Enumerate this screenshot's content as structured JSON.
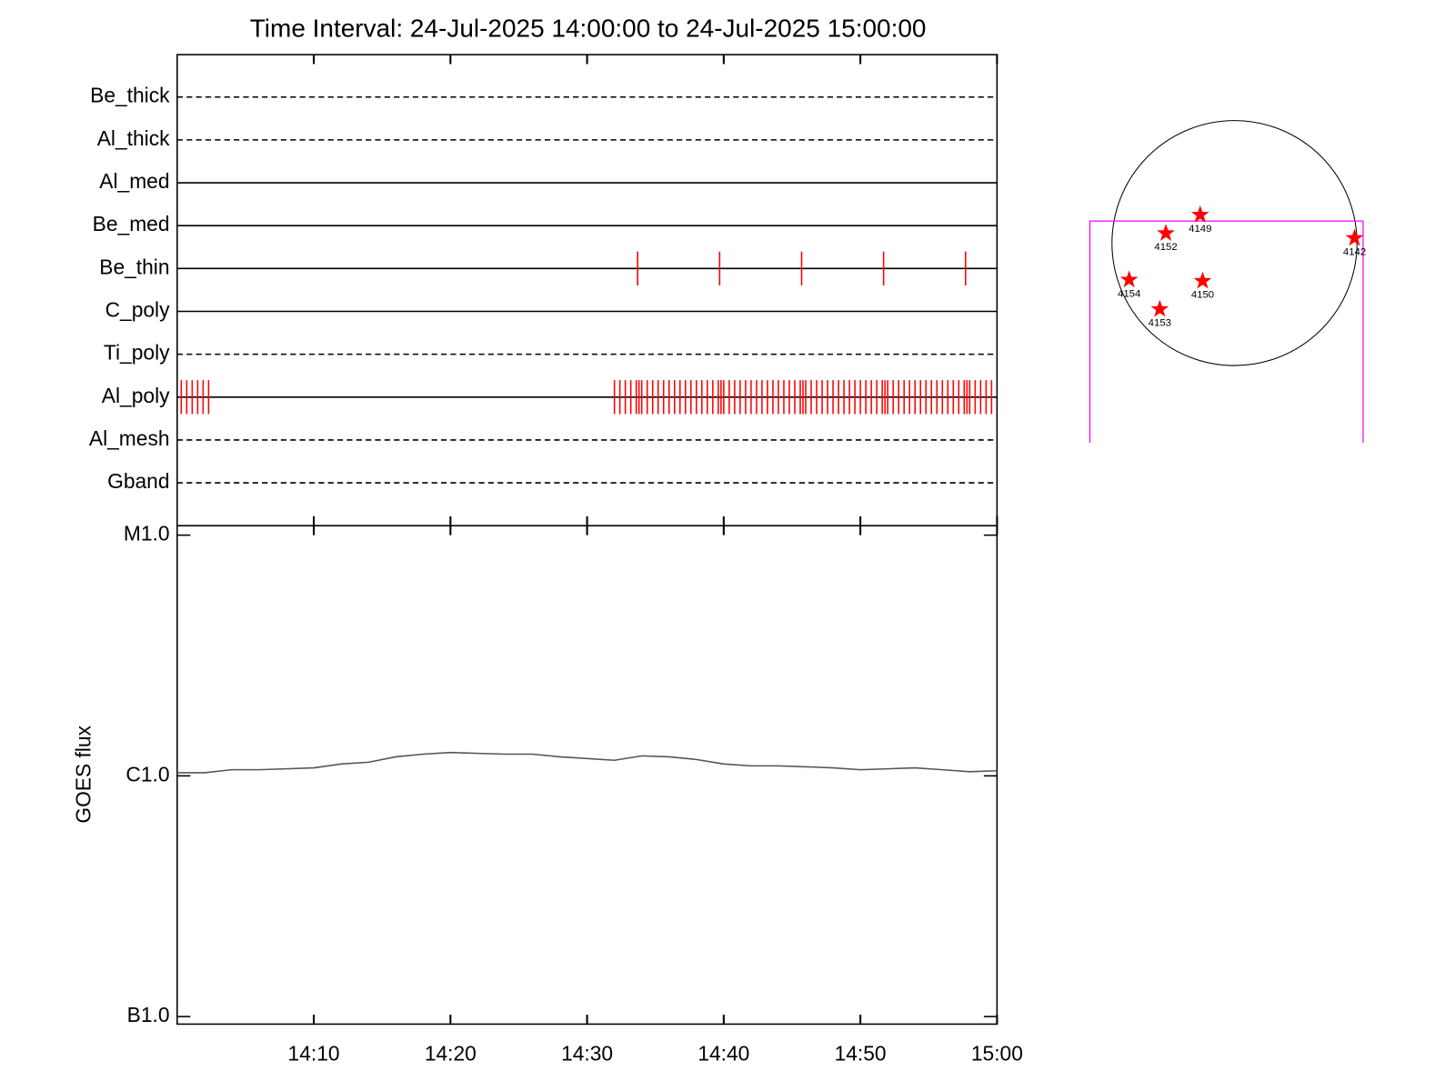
{
  "chart_data": [
    {
      "type": "timeline",
      "title": "Time Interval: 24-Jul-2025 14:00:00 to 24-Jul-2025 15:00:00",
      "categories": [
        "Be_thick",
        "Al_thick",
        "Al_med",
        "Be_med",
        "Be_thin",
        "C_poly",
        "Ti_poly",
        "Al_poly",
        "Al_mesh",
        "Gband"
      ],
      "line_styles": [
        "dashed",
        "dashed",
        "solid",
        "solid",
        "solid",
        "solid",
        "dashed",
        "solid",
        "dashed",
        "dashed"
      ],
      "event_color": "#ff0000",
      "events": [
        [],
        [],
        [],
        [],
        [
          33.7,
          39.7,
          45.7,
          51.7,
          57.7
        ],
        [],
        [],
        [
          0.3,
          0.7,
          1.1,
          1.5,
          1.9,
          2.3,
          32.0,
          32.4,
          32.8,
          33.2,
          33.6,
          33.8,
          34.0,
          34.4,
          34.8,
          35.2,
          35.6,
          36.0,
          36.4,
          36.8,
          37.2,
          37.6,
          38.0,
          38.4,
          38.8,
          39.2,
          39.6,
          39.8,
          40.0,
          40.4,
          40.8,
          41.2,
          41.6,
          42.0,
          42.4,
          42.8,
          43.2,
          43.6,
          44.0,
          44.4,
          44.8,
          45.2,
          45.6,
          45.8,
          46.0,
          46.4,
          46.8,
          47.2,
          47.6,
          48.0,
          48.4,
          48.8,
          49.2,
          49.6,
          50.0,
          50.4,
          50.8,
          51.2,
          51.6,
          51.8,
          52.0,
          52.4,
          52.8,
          53.2,
          53.6,
          54.0,
          54.4,
          54.8,
          55.2,
          55.6,
          56.0,
          56.4,
          56.8,
          57.2,
          57.6,
          57.8,
          58.0,
          58.4,
          58.8,
          59.2,
          59.6
        ],
        [],
        []
      ],
      "xlim": [
        0,
        60
      ],
      "xticks": [
        10,
        20,
        30,
        40,
        50,
        60
      ]
    },
    {
      "type": "line",
      "ylabel": "GOES flux",
      "log": true,
      "x": [
        0,
        2,
        4,
        6,
        8,
        10,
        12,
        14,
        16,
        18,
        20,
        22,
        24,
        26,
        28,
        30,
        32,
        34,
        36,
        38,
        40,
        42,
        44,
        46,
        48,
        50,
        52,
        54,
        56,
        58,
        60
      ],
      "series": [
        {
          "color": "#555555",
          "values": [
            1.03e-06,
            1.03e-06,
            1.06e-06,
            1.06e-06,
            1.07e-06,
            1.08e-06,
            1.12e-06,
            1.14e-06,
            1.2e-06,
            1.23e-06,
            1.25e-06,
            1.24e-06,
            1.23e-06,
            1.23e-06,
            1.2e-06,
            1.18e-06,
            1.16e-06,
            1.21e-06,
            1.2e-06,
            1.17e-06,
            1.12e-06,
            1.1e-06,
            1.1e-06,
            1.09e-06,
            1.08e-06,
            1.06e-06,
            1.07e-06,
            1.08e-06,
            1.06e-06,
            1.04e-06,
            1.05e-06
          ]
        }
      ],
      "xlim": [
        0,
        60
      ],
      "xticks": [
        {
          "value": 10,
          "label": "14:10"
        },
        {
          "value": 20,
          "label": "14:20"
        },
        {
          "value": 30,
          "label": "14:30"
        },
        {
          "value": 40,
          "label": "14:40"
        },
        {
          "value": 50,
          "label": "14:50"
        },
        {
          "value": 60,
          "label": "15:00"
        }
      ],
      "ylim": [
        1e-07,
        1e-05
      ],
      "yticks": [
        {
          "value": 1e-07,
          "label": "B1.0"
        },
        {
          "value": 1e-06,
          "label": "C1.0"
        },
        {
          "value": 1e-05,
          "label": "M1.0"
        }
      ]
    },
    {
      "type": "disk",
      "color": "#ff0000",
      "fov_color": "#ff00ff",
      "points": [
        {
          "label": "4149",
          "x": -0.28,
          "y": 0.23
        },
        {
          "label": "4152",
          "x": -0.56,
          "y": 0.08
        },
        {
          "label": "4142",
          "x": 0.98,
          "y": 0.04
        },
        {
          "label": "4154",
          "x": -0.86,
          "y": -0.3
        },
        {
          "label": "4150",
          "x": -0.26,
          "y": -0.31
        },
        {
          "label": "4153",
          "x": -0.61,
          "y": -0.54
        }
      ],
      "fov": {
        "xlim": [
          -1.18,
          1.05
        ],
        "ylim": [
          -1.63,
          0.18
        ]
      }
    }
  ]
}
